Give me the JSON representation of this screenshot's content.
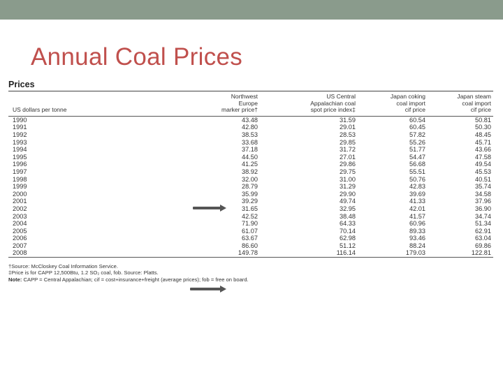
{
  "slide": {
    "title": "Annual Coal Prices"
  },
  "doc": {
    "heading": "Prices",
    "columns": [
      {
        "lines": [
          "",
          "",
          "US dollars per tonne"
        ]
      },
      {
        "lines": [
          "Northwest",
          "Europe",
          "marker price†"
        ]
      },
      {
        "lines": [
          "US Central",
          "Appalachian coal",
          "spot price index‡"
        ]
      },
      {
        "lines": [
          "Japan coking",
          "coal import",
          "cif price"
        ]
      },
      {
        "lines": [
          "Japan steam",
          "coal import",
          "cif price"
        ]
      }
    ],
    "rows": [
      [
        "1990",
        "43.48",
        "31.59",
        "60.54",
        "50.81"
      ],
      [
        "1991",
        "42.80",
        "29.01",
        "60.45",
        "50.30"
      ],
      [
        "1992",
        "38.53",
        "28.53",
        "57.82",
        "48.45"
      ],
      [
        "1993",
        "33.68",
        "29.85",
        "55.26",
        "45.71"
      ],
      [
        "1994",
        "37.18",
        "31.72",
        "51.77",
        "43.66"
      ],
      [
        "1995",
        "44.50",
        "27.01",
        "54.47",
        "47.58"
      ],
      [
        "1996",
        "41.25",
        "29.86",
        "56.68",
        "49.54"
      ],
      [
        "1997",
        "38.92",
        "29.75",
        "55.51",
        "45.53"
      ],
      [
        "1998",
        "32.00",
        "31.00",
        "50.76",
        "40.51"
      ],
      [
        "1999",
        "28.79",
        "31.29",
        "42.83",
        "35.74"
      ],
      [
        "2000",
        "35.99",
        "29.90",
        "39.69",
        "34.58"
      ],
      [
        "2001",
        "39.29",
        "49.74",
        "41.33",
        "37.96"
      ],
      [
        "2002",
        "31.65",
        "32.95",
        "42.01",
        "36.90"
      ],
      [
        "2003",
        "42.52",
        "38.48",
        "41.57",
        "34.74"
      ],
      [
        "2004",
        "71.90",
        "64.33",
        "60.96",
        "51.34"
      ],
      [
        "2005",
        "61.07",
        "70.14",
        "89.33",
        "62.91"
      ],
      [
        "2006",
        "63.67",
        "62.98",
        "93.46",
        "63.04"
      ],
      [
        "2007",
        "86.60",
        "51.12",
        "88.24",
        "69.86"
      ],
      [
        "2008",
        "149.78",
        "116.14",
        "179.03",
        "122.81"
      ]
    ],
    "notes": {
      "source": "†Source: McCloskey Coal Information Service.",
      "price_note": "‡Price is for CAPP 12,500Btu, 1.2 SO₂ coal, fob. Source: Platts.",
      "note_label": "Note:",
      "note_text": " CAPP = Central Appalachian; cif = cost+insurance+freight (average prices); fob = free on board."
    }
  }
}
